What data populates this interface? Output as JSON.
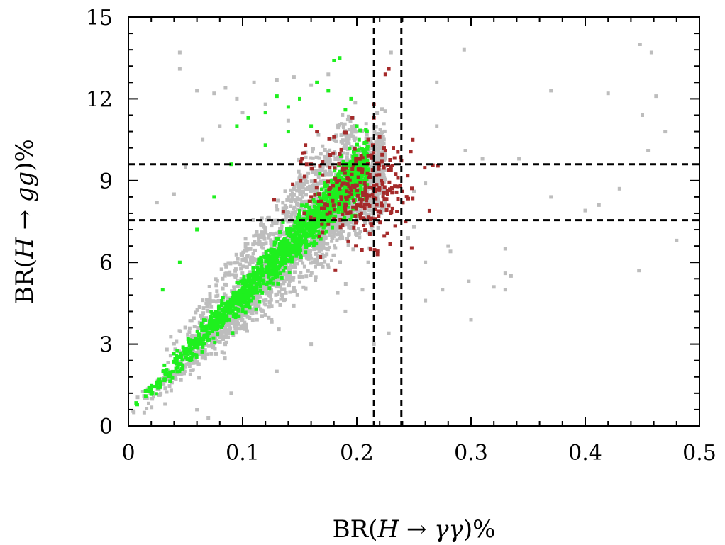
{
  "chart_data": {
    "type": "scatter",
    "title": "",
    "xlabel": {
      "prefix": "BR(",
      "var": "H",
      "arrow": " → ",
      "product": "γγ",
      "suffix": ")%"
    },
    "ylabel": {
      "prefix": "BR(",
      "var": "H",
      "arrow": " → ",
      "product": "gg",
      "suffix": ")%"
    },
    "xlim": [
      0,
      0.5
    ],
    "ylim": [
      0,
      15
    ],
    "xticks": [
      "0",
      "0.1",
      "0.2",
      "0.3",
      "0.4",
      "0.5"
    ],
    "yticks": [
      "0",
      "3",
      "6",
      "9",
      "12",
      "15"
    ],
    "grid": false,
    "legend": "none",
    "colors": {
      "grey": "#bdbdbd",
      "green": "#1ef01e",
      "red": "#a52a2a",
      "ref": "#000000"
    },
    "reference_lines": {
      "vertical": [
        0.215,
        0.239
      ],
      "horizontal": [
        7.55,
        9.6
      ],
      "style": "dashed"
    },
    "series": [
      {
        "color": "grey",
        "points": [
          [
            0.045,
            13.7
          ],
          [
            0.045,
            13.1
          ],
          [
            0.06,
            12.3
          ],
          [
            0.075,
            12.2
          ],
          [
            0.085,
            12.4
          ],
          [
            0.095,
            12.0
          ],
          [
            0.11,
            12.6
          ],
          [
            0.13,
            12.7
          ],
          [
            0.145,
            12.8
          ],
          [
            0.16,
            12.5
          ],
          [
            0.175,
            12.9
          ],
          [
            0.23,
            13.7
          ],
          [
            0.294,
            13.8
          ],
          [
            0.27,
            12.6
          ],
          [
            0.37,
            12.3
          ],
          [
            0.42,
            12.2
          ],
          [
            0.448,
            14.0
          ],
          [
            0.458,
            13.7
          ],
          [
            0.462,
            12.1
          ],
          [
            0.45,
            11.4
          ],
          [
            0.47,
            10.8
          ],
          [
            0.455,
            10.1
          ],
          [
            0.27,
            11.0
          ],
          [
            0.295,
            10.1
          ],
          [
            0.31,
            9.8
          ],
          [
            0.342,
            9.8
          ],
          [
            0.37,
            8.4
          ],
          [
            0.4,
            7.9
          ],
          [
            0.412,
            8.1
          ],
          [
            0.43,
            8.7
          ],
          [
            0.25,
            8.6
          ],
          [
            0.26,
            8.9
          ],
          [
            0.28,
            6.6
          ],
          [
            0.282,
            6.4
          ],
          [
            0.26,
            6.0
          ],
          [
            0.33,
            6.5
          ],
          [
            0.33,
            5.6
          ],
          [
            0.335,
            5.5
          ],
          [
            0.32,
            5.1
          ],
          [
            0.33,
            5.0
          ],
          [
            0.298,
            5.3
          ],
          [
            0.26,
            4.6
          ],
          [
            0.275,
            5.0
          ],
          [
            0.3,
            3.9
          ],
          [
            0.447,
            5.7
          ],
          [
            0.48,
            6.8
          ],
          [
            0.245,
            6.9
          ],
          [
            0.215,
            3.0
          ],
          [
            0.228,
            3.4
          ],
          [
            0.25,
            7.3
          ],
          [
            0.02,
            1.0
          ],
          [
            0.025,
            8.2
          ],
          [
            0.04,
            8.5
          ],
          [
            0.05,
            9.5
          ],
          [
            0.065,
            10.5
          ],
          [
            0.08,
            11.0
          ],
          [
            0.1,
            11.5
          ],
          [
            0.12,
            11.8
          ],
          [
            0.14,
            11.2
          ],
          [
            0.06,
            0.6
          ],
          [
            0.09,
            1.2
          ],
          [
            0.13,
            2.0
          ],
          [
            0.16,
            3.0
          ],
          [
            0.19,
            4.2
          ],
          [
            0.205,
            5.0
          ],
          [
            0.21,
            6.0
          ],
          [
            0.07,
            0.3
          ]
        ],
        "clouds": [
          {
            "count": 2200,
            "x": [
              0.0,
              0.225
            ],
            "slope": 42,
            "offset": 0.3,
            "spread": 0.85,
            "spreadScale": 3.4
          },
          {
            "count": 450,
            "x": [
              0.02,
              0.2
            ],
            "slope": 48,
            "offset": 1.2,
            "spread": 0.7,
            "spreadScale": 3.0
          }
        ]
      },
      {
        "color": "green",
        "points": [
          [
            0.185,
            13.5
          ],
          [
            0.18,
            13.4
          ],
          [
            0.175,
            12.3
          ],
          [
            0.165,
            12.6
          ],
          [
            0.14,
            11.7
          ],
          [
            0.12,
            11.5
          ],
          [
            0.105,
            11.3
          ],
          [
            0.095,
            11.0
          ],
          [
            0.13,
            12.1
          ],
          [
            0.15,
            12.0
          ],
          [
            0.12,
            10.3
          ],
          [
            0.09,
            9.6
          ],
          [
            0.075,
            8.4
          ],
          [
            0.06,
            7.2
          ],
          [
            0.045,
            6.0
          ],
          [
            0.03,
            5.0
          ],
          [
            0.195,
            12.0
          ],
          [
            0.19,
            11.6
          ],
          [
            0.16,
            11.0
          ],
          [
            0.14,
            10.8
          ],
          [
            0.2,
            11.0
          ]
        ],
        "clouds": [
          {
            "count": 1600,
            "x": [
              0.0,
              0.21
            ],
            "slope": 44,
            "offset": 0.4,
            "spread": 0.6,
            "spreadScale": 2.6
          }
        ]
      },
      {
        "color": "red",
        "points": [
          [
            0.228,
            13.1
          ],
          [
            0.225,
            12.9
          ],
          [
            0.215,
            11.8
          ],
          [
            0.215,
            11.3
          ],
          [
            0.21,
            10.5
          ],
          [
            0.22,
            10.6
          ],
          [
            0.225,
            10.1
          ],
          [
            0.232,
            10.2
          ],
          [
            0.21,
            9.9
          ],
          [
            0.222,
            9.7
          ],
          [
            0.23,
            9.5
          ],
          [
            0.236,
            9.1
          ],
          [
            0.238,
            8.8
          ],
          [
            0.24,
            8.6
          ],
          [
            0.196,
            11.3
          ],
          [
            0.18,
            10.6
          ],
          [
            0.165,
            10.8
          ],
          [
            0.155,
            10.3
          ],
          [
            0.152,
            9.8
          ],
          [
            0.16,
            9.6
          ],
          [
            0.17,
            9.2
          ],
          [
            0.16,
            8.4
          ],
          [
            0.163,
            7.6
          ],
          [
            0.17,
            7.1
          ],
          [
            0.175,
            7.4
          ],
          [
            0.18,
            7.6
          ],
          [
            0.19,
            7.9
          ],
          [
            0.2,
            8.1
          ],
          [
            0.205,
            8.3
          ],
          [
            0.195,
            8.5
          ],
          [
            0.185,
            8.7
          ]
        ],
        "clouds": [
          {
            "count": 260,
            "cx": 0.205,
            "cy": 8.55,
            "rx": 0.022,
            "ry": 0.85
          }
        ]
      }
    ]
  }
}
